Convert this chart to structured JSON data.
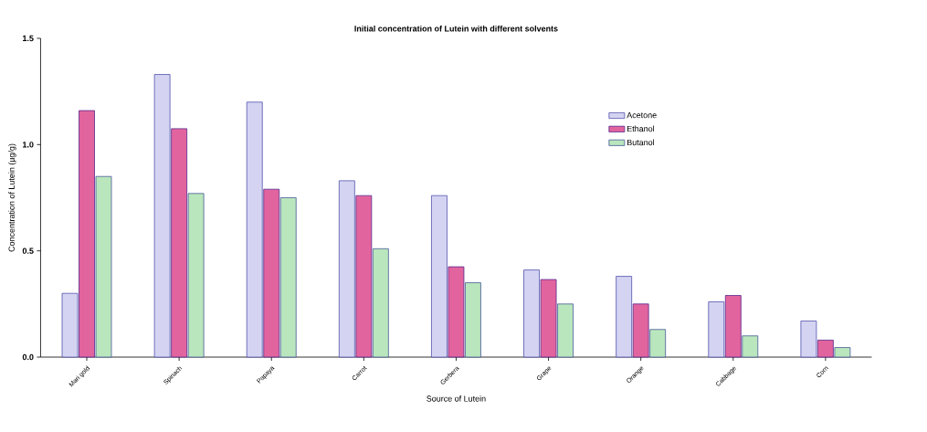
{
  "chart_data": {
    "type": "bar",
    "title": "Initial concentration of Lutein with different solvents",
    "xlabel": "Source of Lutein",
    "ylabel": "Concentration of Lutein (µg/g)",
    "categories": [
      "Mari gold",
      "Spinach",
      "Papaya",
      "Carrot",
      "Gerbera",
      "Grape",
      "Orange",
      "Cabbage",
      "Corn"
    ],
    "series": [
      {
        "name": "Acetone",
        "color": "#d4d4f2",
        "values": [
          0.3,
          1.33,
          1.2,
          0.83,
          0.76,
          0.41,
          0.38,
          0.26,
          0.17
        ]
      },
      {
        "name": "Ethanol",
        "color": "#e2649e",
        "values": [
          1.16,
          1.075,
          0.79,
          0.76,
          0.425,
          0.365,
          0.25,
          0.29,
          0.08
        ]
      },
      {
        "name": "Butanol",
        "color": "#b9e6bc",
        "values": [
          0.85,
          0.77,
          0.75,
          0.51,
          0.35,
          0.25,
          0.13,
          0.1,
          0.045
        ]
      }
    ],
    "ylim": [
      0,
      1.5
    ],
    "yticks": [
      {
        "value": 0,
        "label": "0.0"
      },
      {
        "value": 0.5,
        "label": "0.5"
      },
      {
        "value": 1.0,
        "label": "1.0"
      },
      {
        "value": 1.5,
        "label": "1.5"
      }
    ],
    "grid": false,
    "legend": "top right"
  }
}
